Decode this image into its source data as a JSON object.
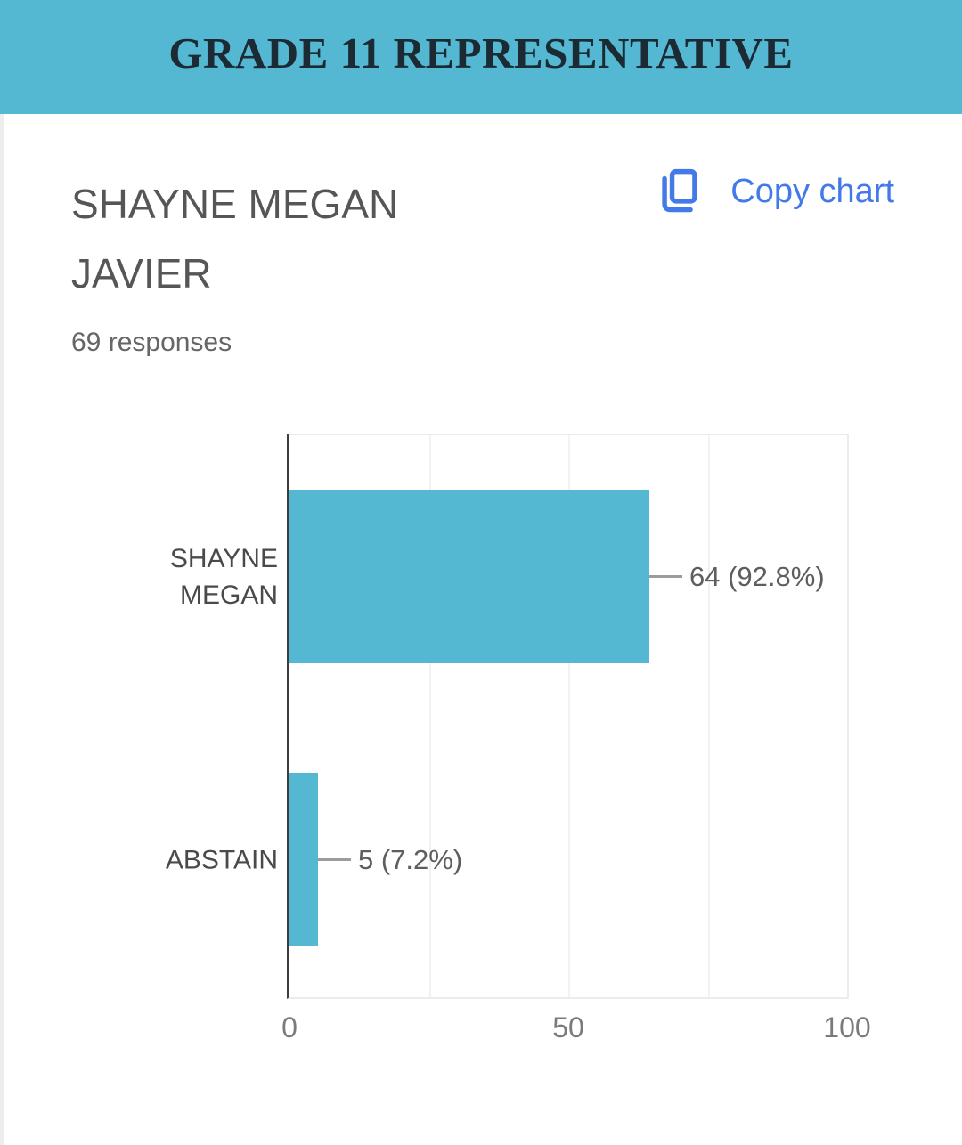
{
  "header": {
    "title": "GRADE 11 REPRESENTATIVE",
    "background_color": "#55b8d2",
    "text_color": "#1b2a33"
  },
  "card": {
    "title": "SHAYNE MEGAN JAVIER",
    "responses": "69 responses",
    "copy_chart": {
      "label": "Copy chart",
      "color": "#4379e8",
      "icon": "copy-icon"
    }
  },
  "chart_data": {
    "type": "bar",
    "orientation": "horizontal",
    "categories": [
      "SHAYNE MEGAN",
      "ABSTAIN"
    ],
    "values": [
      64,
      5
    ],
    "value_labels": [
      "64 (92.8%)",
      "5 (7.2%)"
    ],
    "percentages": [
      92.8,
      7.2
    ],
    "total_responses": 69,
    "title": "SHAYNE MEGAN JAVIER",
    "xlabel": "",
    "ylabel": "",
    "xlim": [
      0,
      100
    ],
    "xticks": [
      0,
      50,
      100
    ],
    "grid": true,
    "gridlines_at": [
      25,
      50,
      75
    ],
    "bar_color": "#54b8d2",
    "axis_line_color": "#3d3d3d",
    "legend_position": "none"
  }
}
